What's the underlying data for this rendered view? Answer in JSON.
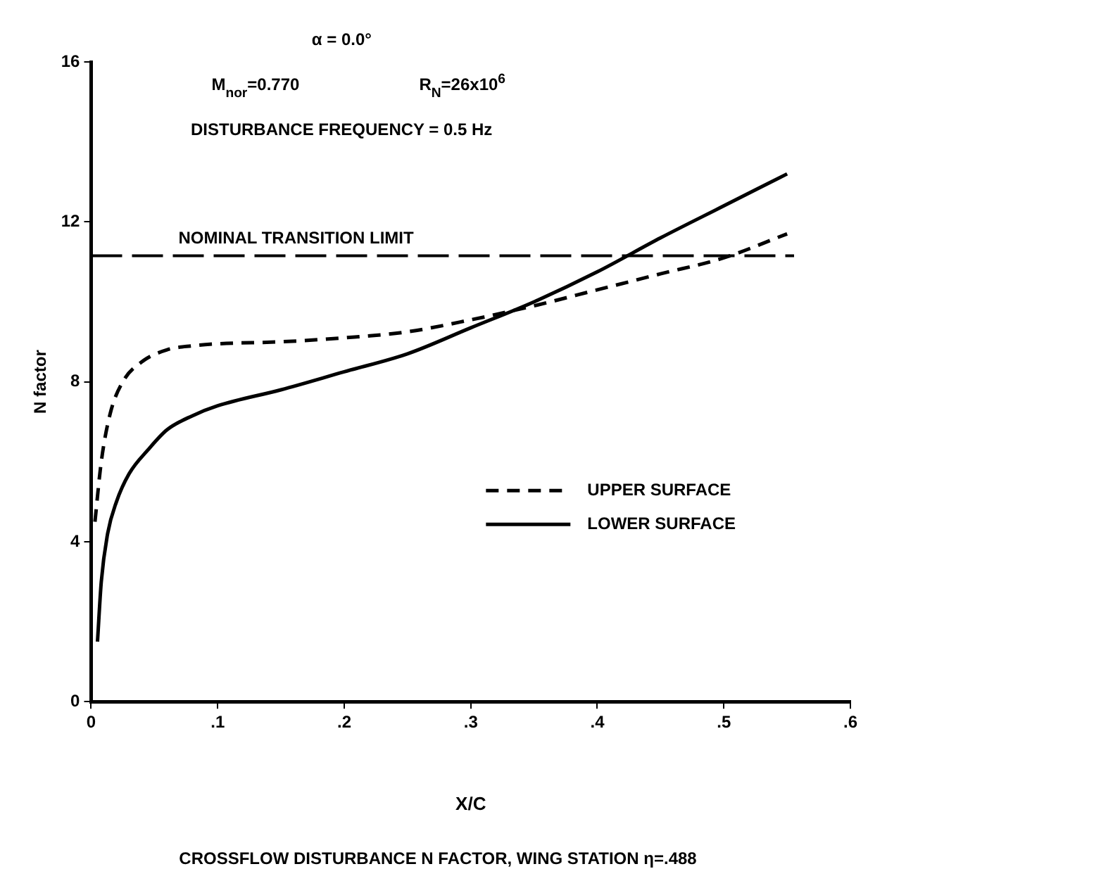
{
  "chart_data": {
    "type": "line",
    "title": "CROSSFLOW DISTURBANCE N FACTOR, WING STATION η=.488",
    "xlabel": "X/C",
    "ylabel": "N factor",
    "annotations": [
      "α = 0.0°",
      "M$_{nor}$=0.770",
      "R$_{N}$=26x10$^{6}$",
      "DISTURBANCE FREQUENCY = 0.5 Hz"
    ],
    "xlim": [
      0,
      0.6
    ],
    "xticks": [
      0,
      {
        "value": 0.1,
        "label": ".1"
      },
      {
        "value": 0.2,
        "label": ".2"
      },
      {
        "value": 0.3,
        "label": ".3"
      },
      {
        "value": 0.4,
        "label": ".4"
      },
      {
        "value": 0.5,
        "label": ".5"
      },
      {
        "value": 0.6,
        "label": ".6"
      }
    ],
    "ylim": [
      0,
      16
    ],
    "yticks": [
      0,
      4,
      8,
      12,
      16
    ],
    "grid": false,
    "legend": "bottom right",
    "marker": "none",
    "ref_lines": [
      {
        "axis": "y",
        "value": 11.15,
        "label": "NOMINAL TRANSITION LIMIT",
        "color": "#000000",
        "line_style": "dashed"
      }
    ],
    "series": [
      {
        "name": "UPPER SURFACE",
        "color": "#000000",
        "line_style": "dashed",
        "x": [
          0.003,
          0.008,
          0.015,
          0.025,
          0.04,
          0.06,
          0.08,
          0.1,
          0.15,
          0.2,
          0.25,
          0.3,
          0.35,
          0.4,
          0.45,
          0.5,
          0.55
        ],
        "values": [
          4.5,
          6.0,
          7.2,
          8.0,
          8.5,
          8.8,
          8.9,
          8.95,
          9.0,
          9.1,
          9.25,
          9.55,
          9.9,
          10.3,
          10.7,
          11.1,
          11.7
        ]
      },
      {
        "name": "LOWER SURFACE",
        "color": "#000000",
        "line_style": "solid",
        "x": [
          0.005,
          0.008,
          0.013,
          0.02,
          0.03,
          0.045,
          0.06,
          0.08,
          0.1,
          0.15,
          0.2,
          0.25,
          0.3,
          0.35,
          0.4,
          0.45,
          0.5,
          0.55
        ],
        "values": [
          1.5,
          3.0,
          4.2,
          5.0,
          5.7,
          6.3,
          6.8,
          7.15,
          7.4,
          7.8,
          8.25,
          8.7,
          9.35,
          10.0,
          10.75,
          11.6,
          12.4,
          13.2
        ]
      }
    ]
  }
}
